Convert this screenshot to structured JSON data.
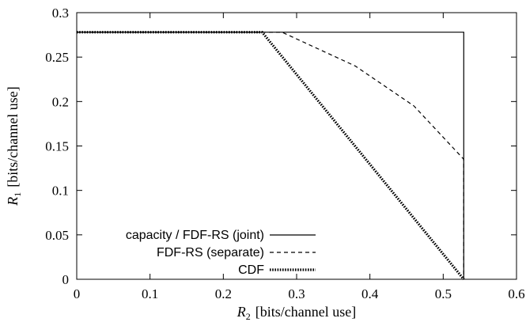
{
  "chart_data": {
    "type": "line",
    "xlabel": {
      "var": "R",
      "sub": "2",
      "unit": "[bits/channel use]"
    },
    "ylabel": {
      "var": "R",
      "sub": "1",
      "unit": "[bits/channel use]"
    },
    "xlim": [
      0,
      0.6
    ],
    "ylim": [
      0,
      0.3
    ],
    "xticks": [
      "0",
      "0.1",
      "0.2",
      "0.3",
      "0.4",
      "0.5",
      "0.6"
    ],
    "yticks": [
      "0",
      "0.05",
      "0.1",
      "0.15",
      "0.2",
      "0.25",
      "0.3"
    ],
    "grid": false,
    "legend_position": "bottom-left",
    "series": [
      {
        "name": "capacity / FDF-RS (joint)",
        "style": "solid",
        "points": [
          [
            0,
            0.278
          ],
          [
            0.528,
            0.278
          ],
          [
            0.528,
            0
          ]
        ]
      },
      {
        "name": "FDF-RS (separate)",
        "style": "dashed",
        "points": [
          [
            0,
            0.278
          ],
          [
            0.28,
            0.278
          ],
          [
            0.38,
            0.24
          ],
          [
            0.46,
            0.195
          ],
          [
            0.528,
            0.135
          ],
          [
            0.528,
            0
          ]
        ]
      },
      {
        "name": "CDF",
        "style": "dotted",
        "points": [
          [
            0,
            0.278
          ],
          [
            0.253,
            0.278
          ],
          [
            0.528,
            0
          ]
        ]
      }
    ]
  }
}
